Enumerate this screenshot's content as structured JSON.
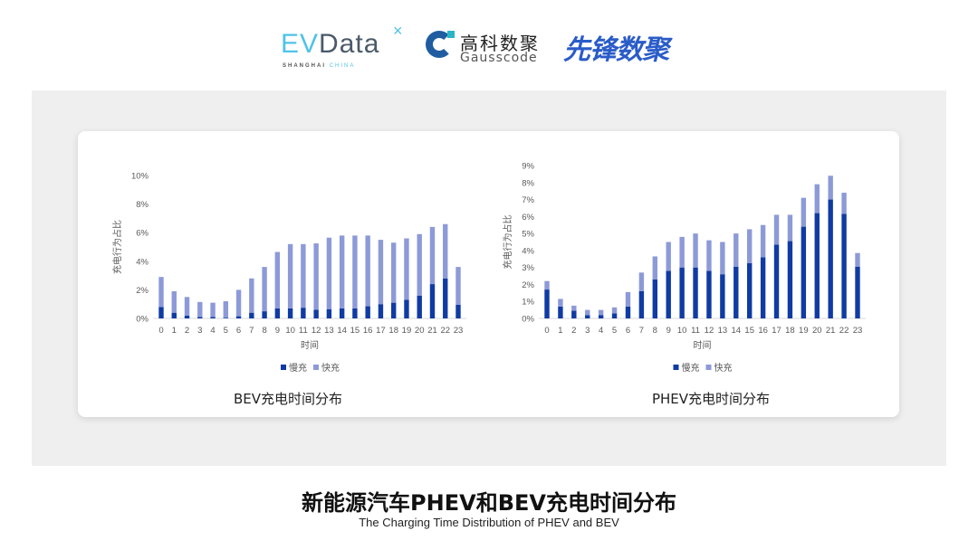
{
  "logos": {
    "evdata": {
      "prefix": "EV",
      "main": "Data",
      "x": "×",
      "sub_left": "SHANGHAI",
      "sub_right": "CHINA"
    },
    "gausscode": {
      "cn": "高科数聚",
      "en": "Gausscode"
    },
    "xianfeng": "先锋数聚"
  },
  "footer": {
    "title": "新能源汽车PHEV和BEV充电时间分布",
    "subtitle": "The Charging Time Distribution of PHEV and BEV"
  },
  "colors": {
    "slow": "#0f3ba3",
    "fast": "#8d9ad8"
  },
  "chart_data": [
    {
      "type": "bar",
      "stacked": true,
      "caption": "BEV充电时间分布",
      "xlabel": "时间",
      "ylabel": "充电行为占比",
      "categories": [
        "0",
        "1",
        "2",
        "3",
        "4",
        "5",
        "6",
        "7",
        "8",
        "9",
        "10",
        "11",
        "12",
        "13",
        "14",
        "15",
        "16",
        "17",
        "18",
        "19",
        "20",
        "21",
        "22",
        "23"
      ],
      "ylim": [
        0,
        10
      ],
      "yticks": [
        "0%",
        "2%",
        "4%",
        "6%",
        "8%",
        "10%"
      ],
      "ytick_values": [
        0,
        2,
        4,
        6,
        8,
        10
      ],
      "legend_position": "bottom",
      "grid": false,
      "series": [
        {
          "name": "慢充",
          "values": [
            0.8,
            0.4,
            0.2,
            0.1,
            0.1,
            0.05,
            0.15,
            0.4,
            0.5,
            0.7,
            0.7,
            0.75,
            0.6,
            0.65,
            0.7,
            0.7,
            0.85,
            1.0,
            1.1,
            1.3,
            1.6,
            2.4,
            2.8,
            0.95
          ]
        },
        {
          "name": "快充",
          "values": [
            2.1,
            1.5,
            1.3,
            1.05,
            1.0,
            1.15,
            1.85,
            2.4,
            3.1,
            3.95,
            4.5,
            4.45,
            4.65,
            5.0,
            5.1,
            5.1,
            4.95,
            4.5,
            4.2,
            4.3,
            4.3,
            4.0,
            3.8,
            2.65
          ]
        }
      ]
    },
    {
      "type": "bar",
      "stacked": true,
      "caption": "PHEV充电时间分布",
      "xlabel": "时间",
      "ylabel": "充电行为占比",
      "categories": [
        "0",
        "1",
        "2",
        "3",
        "4",
        "5",
        "6",
        "7",
        "8",
        "9",
        "10",
        "11",
        "12",
        "13",
        "14",
        "15",
        "16",
        "17",
        "18",
        "19",
        "20",
        "21",
        "22",
        "23"
      ],
      "ylim": [
        0,
        9
      ],
      "yticks": [
        "0%",
        "1%",
        "2%",
        "3%",
        "4%",
        "5%",
        "6%",
        "7%",
        "8%",
        "9%"
      ],
      "ytick_values": [
        0,
        1,
        2,
        3,
        4,
        5,
        6,
        7,
        8,
        9
      ],
      "legend_position": "bottom",
      "grid": false,
      "series": [
        {
          "name": "慢充",
          "values": [
            1.7,
            0.7,
            0.45,
            0.2,
            0.2,
            0.3,
            0.7,
            1.6,
            2.3,
            2.8,
            3.0,
            3.0,
            2.8,
            2.6,
            3.05,
            3.25,
            3.6,
            4.35,
            4.55,
            5.4,
            6.2,
            7.0,
            6.15,
            3.05
          ]
        },
        {
          "name": "快充",
          "values": [
            0.5,
            0.45,
            0.3,
            0.3,
            0.3,
            0.35,
            0.85,
            1.1,
            1.35,
            1.7,
            1.8,
            2.0,
            1.8,
            1.9,
            1.95,
            2.0,
            1.9,
            1.75,
            1.55,
            1.7,
            1.7,
            1.4,
            1.25,
            0.8
          ]
        }
      ]
    }
  ]
}
